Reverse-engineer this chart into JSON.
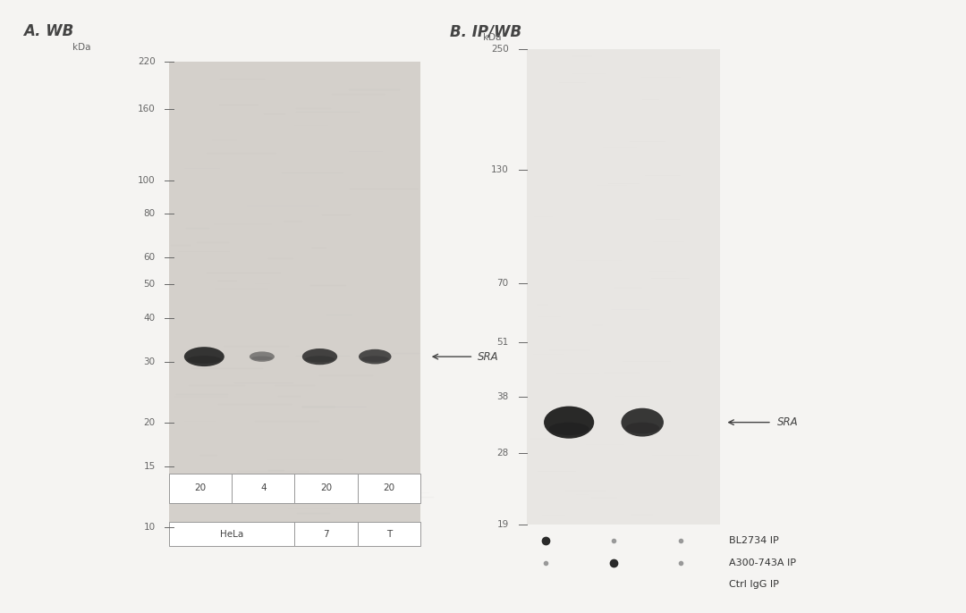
{
  "bg_color": "#f5f4f2",
  "gel_bg_A": "#d4d0cb",
  "gel_bg_B": "#e8e6e3",
  "panel_A_title": "A. WB",
  "panel_B_title": "B. IP/WB",
  "panel_A_markers": [
    220,
    160,
    100,
    80,
    60,
    50,
    40,
    30,
    20,
    15,
    10
  ],
  "panel_B_markers": [
    250,
    130,
    70,
    51,
    38,
    28,
    19
  ],
  "SRA_label": "SRA",
  "text_color": "#666666",
  "band_color": "#1a1a1a",
  "table_labels_row1": [
    "20",
    "4",
    "20",
    "20"
  ],
  "table_row2_col1": "HeLa",
  "table_row2_col2": "7",
  "table_row2_col3": "T",
  "dot_rows": [
    {
      "label": "BL2734 IP",
      "dots": [
        2,
        1,
        1
      ]
    },
    {
      "label": "A300-743A IP",
      "dots": [
        1,
        2,
        1
      ]
    },
    {
      "label": "Ctrl IgG IP",
      "dots": [
        1,
        1,
        2
      ]
    }
  ]
}
